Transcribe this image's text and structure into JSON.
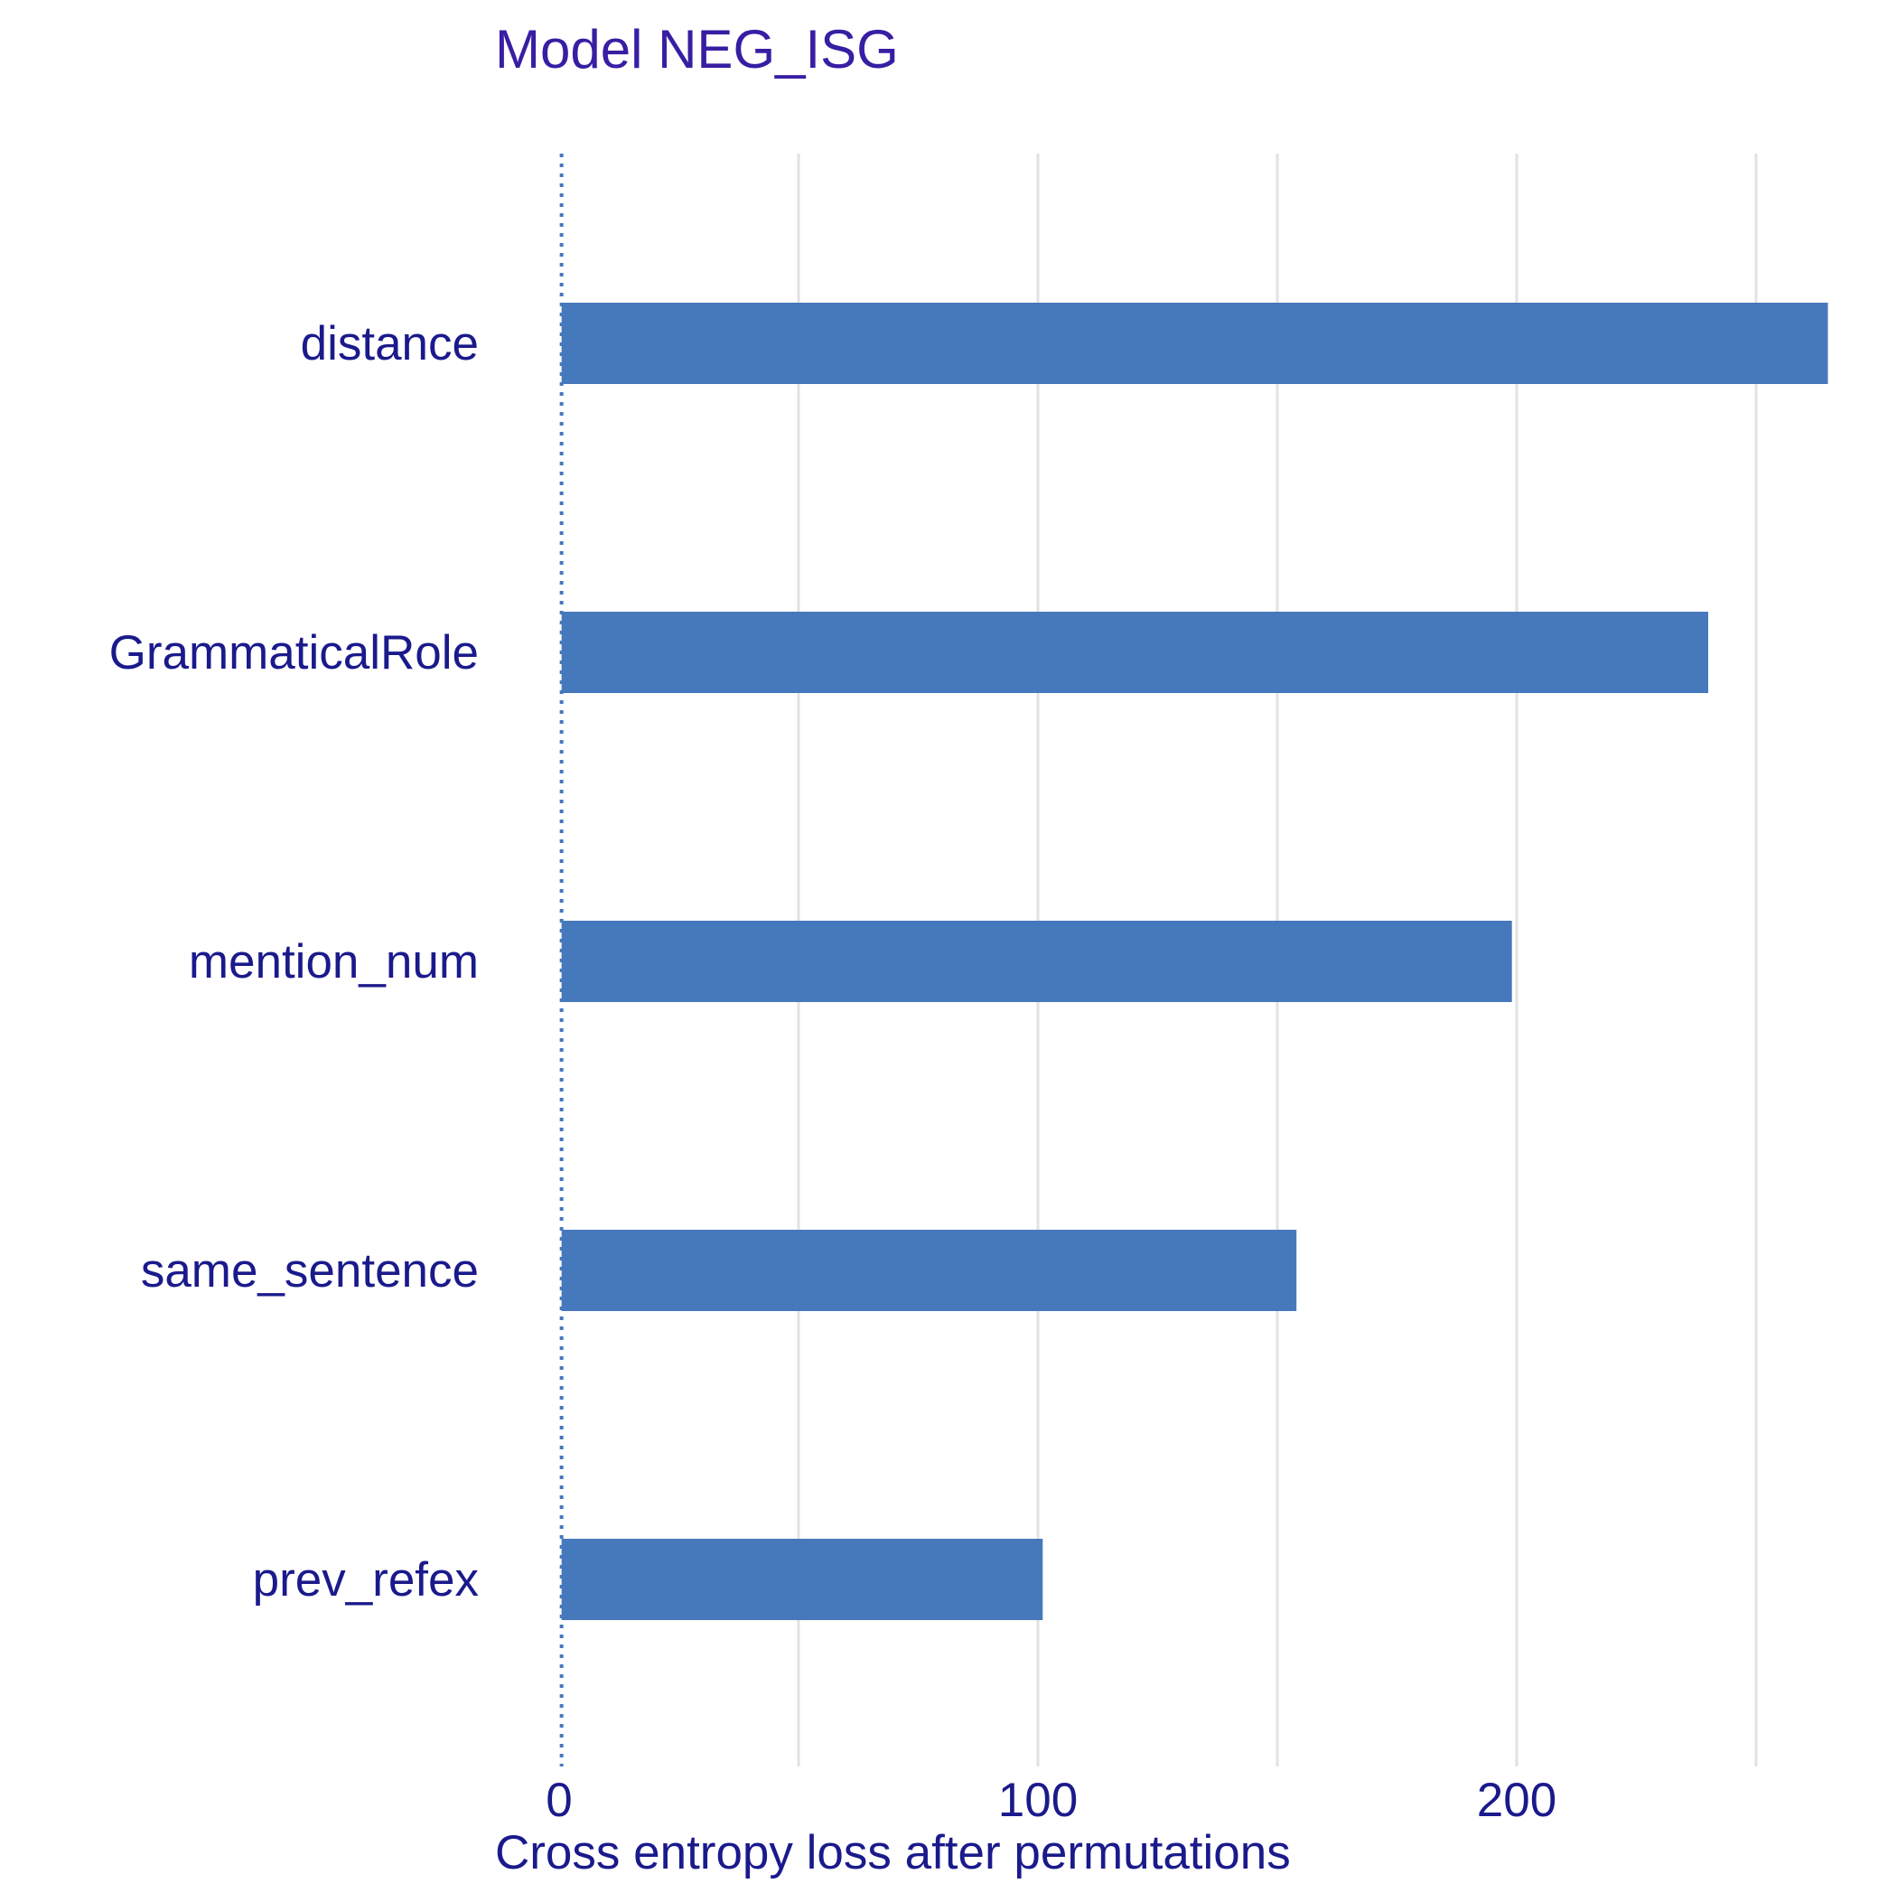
{
  "chart_data": {
    "type": "bar",
    "orientation": "horizontal",
    "title": "Model NEG_ISG",
    "xlabel": "Cross entropy loss after permutations",
    "ylabel": "",
    "categories": [
      "distance",
      "GrammaticalRole",
      "mention_num",
      "same_sentence",
      "prev_refex"
    ],
    "values": [
      265,
      240,
      199,
      154,
      101
    ],
    "baseline": 0.5,
    "xlim": [
      0,
      265
    ],
    "xticks": [
      0,
      100,
      200
    ],
    "grid": "vertical",
    "legend": "none"
  },
  "colors": {
    "bar": "#4678BC",
    "baseline": "#4678BC",
    "grid": "#E2E2E2",
    "title": "#371EA3",
    "labels": "#1A1A8C"
  }
}
